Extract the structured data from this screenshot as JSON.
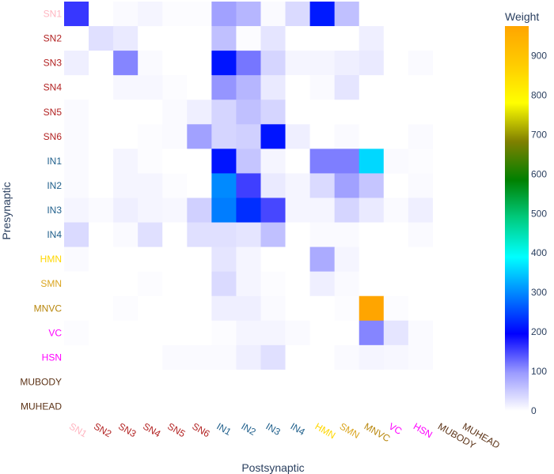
{
  "chart_data": {
    "type": "heatmap",
    "xlabel": "Postsynaptic",
    "ylabel": "Presynaptic",
    "colorbar_title": "Weight",
    "colorbar_ticks": [
      0,
      100,
      200,
      300,
      400,
      500,
      600,
      700,
      800,
      900
    ],
    "zlim": [
      0,
      975
    ],
    "labels": [
      "SN1",
      "SN2",
      "SN3",
      "SN4",
      "SN5",
      "SN6",
      "IN1",
      "IN2",
      "IN3",
      "IN4",
      "HMN",
      "SMN",
      "MNVC",
      "VC",
      "HSN",
      "MUBODY",
      "MUHEAD"
    ],
    "label_colors": [
      "#ffb6c1",
      "#b22222",
      "#b22222",
      "#b22222",
      "#b22222",
      "#b22222",
      "#1f5f8b",
      "#1f5f8b",
      "#1f5f8b",
      "#1f5f8b",
      "#ffd700",
      "#daa520",
      "#b8860b",
      "#ff00ff",
      "#ff00ff",
      "#5c3317",
      "#5c3317"
    ],
    "colorscale": [
      [
        0.0,
        "#ffffff"
      ],
      [
        0.1,
        "#9999ff"
      ],
      [
        0.2,
        "#0000ff"
      ],
      [
        0.3,
        "#0080ff"
      ],
      [
        0.4,
        "#00ffff"
      ],
      [
        0.5,
        "#00cc80"
      ],
      [
        0.6,
        "#008000"
      ],
      [
        0.7,
        "#808000"
      ],
      [
        0.8,
        "#ffff00"
      ],
      [
        0.9,
        "#ffcc00"
      ],
      [
        1.0,
        "#ffa500"
      ]
    ],
    "z": [
      [
        160,
        0,
        5,
        10,
        3,
        3,
        90,
        70,
        5,
        35,
        215,
        60,
        0,
        0,
        0,
        0,
        0
      ],
      [
        0,
        30,
        20,
        0,
        0,
        0,
        60,
        3,
        25,
        0,
        0,
        0,
        15,
        0,
        0,
        0,
        0
      ],
      [
        15,
        0,
        110,
        5,
        0,
        0,
        210,
        120,
        40,
        10,
        10,
        15,
        20,
        0,
        5,
        0,
        0
      ],
      [
        0,
        0,
        8,
        8,
        3,
        0,
        100,
        70,
        20,
        0,
        5,
        25,
        0,
        0,
        0,
        0,
        0
      ],
      [
        5,
        0,
        0,
        0,
        5,
        15,
        40,
        60,
        40,
        0,
        0,
        0,
        0,
        0,
        0,
        0,
        0
      ],
      [
        5,
        0,
        0,
        3,
        5,
        90,
        40,
        45,
        210,
        15,
        0,
        5,
        0,
        0,
        5,
        0,
        0
      ],
      [
        5,
        0,
        10,
        3,
        0,
        0,
        210,
        55,
        10,
        0,
        115,
        115,
        360,
        5,
        3,
        0,
        0
      ],
      [
        5,
        0,
        10,
        10,
        3,
        0,
        300,
        155,
        20,
        10,
        35,
        90,
        55,
        0,
        5,
        0,
        0
      ],
      [
        10,
        5,
        15,
        10,
        8,
        45,
        290,
        230,
        150,
        10,
        10,
        40,
        20,
        5,
        15,
        0,
        0
      ],
      [
        35,
        0,
        5,
        30,
        0,
        30,
        30,
        25,
        60,
        0,
        5,
        5,
        0,
        0,
        5,
        0,
        0
      ],
      [
        5,
        0,
        0,
        0,
        0,
        0,
        25,
        10,
        0,
        0,
        80,
        10,
        0,
        0,
        0,
        0,
        0
      ],
      [
        0,
        0,
        0,
        3,
        0,
        0,
        35,
        10,
        3,
        0,
        15,
        5,
        0,
        0,
        0,
        0,
        0
      ],
      [
        0,
        0,
        3,
        0,
        0,
        0,
        15,
        15,
        5,
        0,
        0,
        3,
        975,
        3,
        0,
        0,
        0
      ],
      [
        3,
        0,
        0,
        0,
        0,
        0,
        3,
        10,
        10,
        5,
        0,
        0,
        110,
        25,
        5,
        0,
        0
      ],
      [
        0,
        0,
        0,
        0,
        5,
        5,
        5,
        15,
        30,
        0,
        0,
        5,
        10,
        8,
        5,
        0,
        0
      ],
      [
        0,
        0,
        0,
        0,
        0,
        0,
        0,
        0,
        0,
        0,
        0,
        0,
        0,
        0,
        0,
        0,
        0
      ],
      [
        0,
        0,
        0,
        0,
        0,
        0,
        0,
        0,
        0,
        0,
        0,
        0,
        0,
        0,
        0,
        0,
        0
      ]
    ]
  }
}
